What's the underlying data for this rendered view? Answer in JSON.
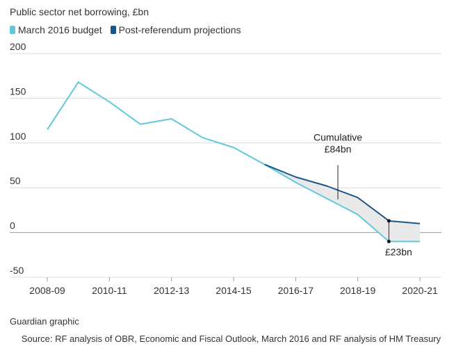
{
  "title": "Public sector net borrowing, £bn",
  "footer": {
    "credit": "Guardian graphic",
    "source": "Source: RF analysis of OBR, Economic and Fiscal Outlook, March 2016 and RF analysis of HM Treasury"
  },
  "colors": {
    "march_budget": "#5fc8dc",
    "post_referendum": "#1a5688",
    "shading": "#e9e9e9",
    "grid": "#dcdcdc",
    "axis_text": "#333333"
  },
  "chart_data": {
    "type": "line",
    "title": "Public sector net borrowing, £bn",
    "ylim": [
      -50,
      200
    ],
    "yticks": [
      200,
      150,
      100,
      50,
      0,
      -50
    ],
    "x_tick_labels": [
      "2008-09",
      "2010-11",
      "2012-13",
      "2014-15",
      "2016-17",
      "2018-19",
      "2020-21"
    ],
    "x": [
      "2008-09",
      "2009-10",
      "2010-11",
      "2011-12",
      "2012-13",
      "2013-14",
      "2014-15",
      "2015-16",
      "2016-17",
      "2017-18",
      "2018-19",
      "2019-20",
      "2020-21"
    ],
    "series": [
      {
        "name": "March 2016 budget",
        "color": "#5fc8dc",
        "values": [
          115,
          168,
          146,
          121,
          127,
          106,
          95,
          76,
          56,
          38,
          20,
          -10,
          -10
        ]
      },
      {
        "name": "Post-referendum projections",
        "color": "#1a5688",
        "values": [
          null,
          null,
          null,
          null,
          null,
          null,
          null,
          76,
          62,
          52,
          39,
          13,
          10
        ]
      }
    ],
    "annotations": [
      {
        "text_lines": [
          "Cumulative",
          "£84bn"
        ],
        "points_to": "2017-18"
      },
      {
        "text": "£23bn",
        "at": "2019-20"
      }
    ],
    "legend": "top-left",
    "grid": true
  }
}
